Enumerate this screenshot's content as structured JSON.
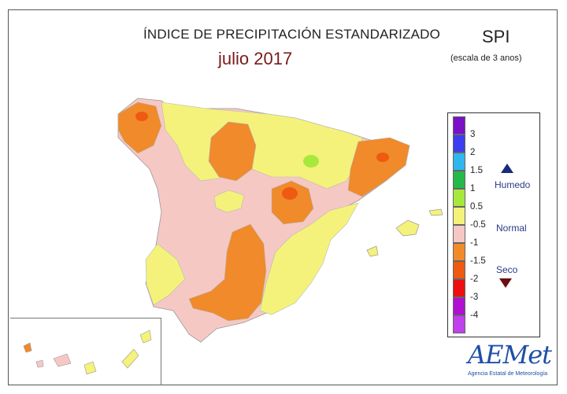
{
  "header": {
    "title": "ÍNDICE DE PRECIPITACIÓN ESTANDARIZADO",
    "period": "julio 2017",
    "index_name": "SPI",
    "index_scale": "(escala de 3 anos)"
  },
  "legend": {
    "ticks": [
      "3",
      "2",
      "1.5",
      "1",
      "0.5",
      "-0.5",
      "-1",
      "-1.5",
      "-2",
      "-3",
      "-4"
    ],
    "classes": [
      {
        "color": "#7a10c8"
      },
      {
        "color": "#3c3cf0"
      },
      {
        "color": "#31b6f0"
      },
      {
        "color": "#25b84a"
      },
      {
        "color": "#a6e83c"
      },
      {
        "color": "#f4f27a"
      },
      {
        "color": "#f6c8c4"
      },
      {
        "color": "#f08a2a"
      },
      {
        "color": "#ee5a10"
      },
      {
        "color": "#ee1010"
      },
      {
        "color": "#b010d0"
      },
      {
        "color": "#c040ee"
      }
    ],
    "humid_label": "Humedo",
    "normal_label": "Normal",
    "dry_label": "Seco"
  },
  "logo": {
    "text": "AEMet",
    "subtext": "Agencia Estatal de Meteorología"
  }
}
